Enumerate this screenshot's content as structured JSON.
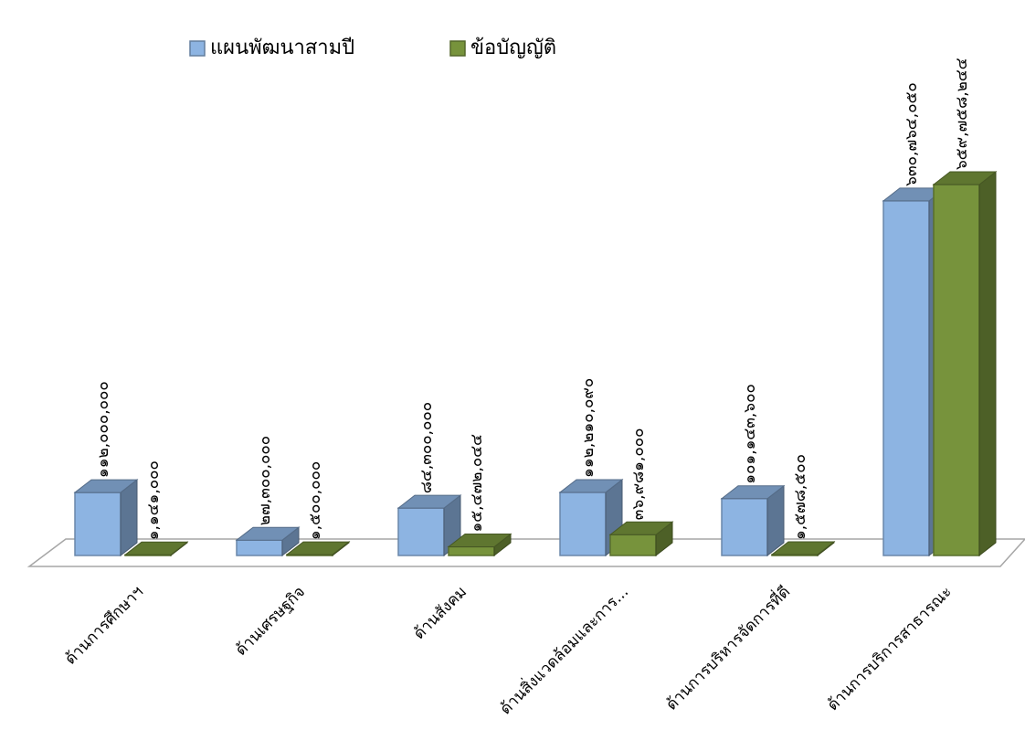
{
  "chart_data": {
    "type": "bar3d",
    "categories": [
      "ด้านการศึกษาฯ",
      "ด้านเศรษฐกิจ",
      "ด้านสังคม",
      "ด้านสิ่งแวดล้อมและการ...",
      "ด้านการบริหารจัดการที่ดี",
      "ด้านการบริการสาธารณะ"
    ],
    "series": [
      {
        "name": "แผนพัฒนาสามปี",
        "color": "#8db4e2",
        "values": [
          112000000,
          27300000,
          84300000,
          112210090,
          101143600,
          630764050
        ],
        "value_labels": [
          "๑๑๒,๐๐๐,๐๐๐",
          "๒๗,๓๐๐,๐๐๐",
          "๘๔,๓๐๐,๐๐๐",
          "๑๑๒,๒๑๐,๐๙๐",
          "๑๐๑,๑๔๓,๖๐๐",
          "๖๓๐,๗๖๔,๐๕๐"
        ]
      },
      {
        "name": "ข้อบัญญัติ",
        "color": "#77933c",
        "values": [
          1141000,
          1500000,
          15472044,
          36981000,
          1578500,
          659758244
        ],
        "value_labels": [
          "๑,๑๔๑,๐๐๐",
          "๑,๕๐๐,๐๐๐",
          "๑๕,๔๗๒,๐๔๔",
          "๓๖,๙๘๑,๐๐๐",
          "๑,๕๗๘,๕๐๐",
          "๖๕๙,๗๕๘,๒๔๔"
        ]
      }
    ],
    "legend": "top"
  }
}
